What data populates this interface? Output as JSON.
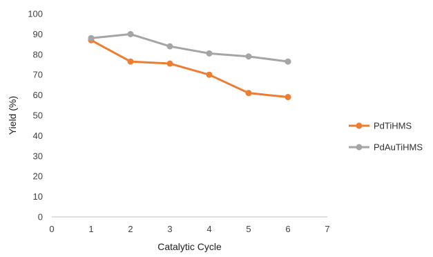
{
  "chart_data": {
    "type": "line",
    "xlabel": "Catalytic Cycle",
    "ylabel": "Yield (%)",
    "xlim": [
      0,
      7
    ],
    "ylim": [
      0,
      100
    ],
    "x_ticks": [
      "0",
      "1",
      "2",
      "3",
      "4",
      "5",
      "6",
      "7"
    ],
    "y_ticks": [
      "0",
      "10",
      "20",
      "30",
      "40",
      "50",
      "60",
      "70",
      "80",
      "90",
      "100"
    ],
    "grid": false,
    "legend_position": "right",
    "x": [
      1,
      2,
      3,
      4,
      5,
      6
    ],
    "series": [
      {
        "name": "PdTiHMS",
        "color": "#ED7D31",
        "values": [
          87,
          76.5,
          75.5,
          70,
          61,
          59
        ]
      },
      {
        "name": "PdAuTiHMS",
        "color": "#A5A5A5",
        "values": [
          88,
          90,
          84,
          80.5,
          79,
          76.5
        ]
      }
    ]
  }
}
